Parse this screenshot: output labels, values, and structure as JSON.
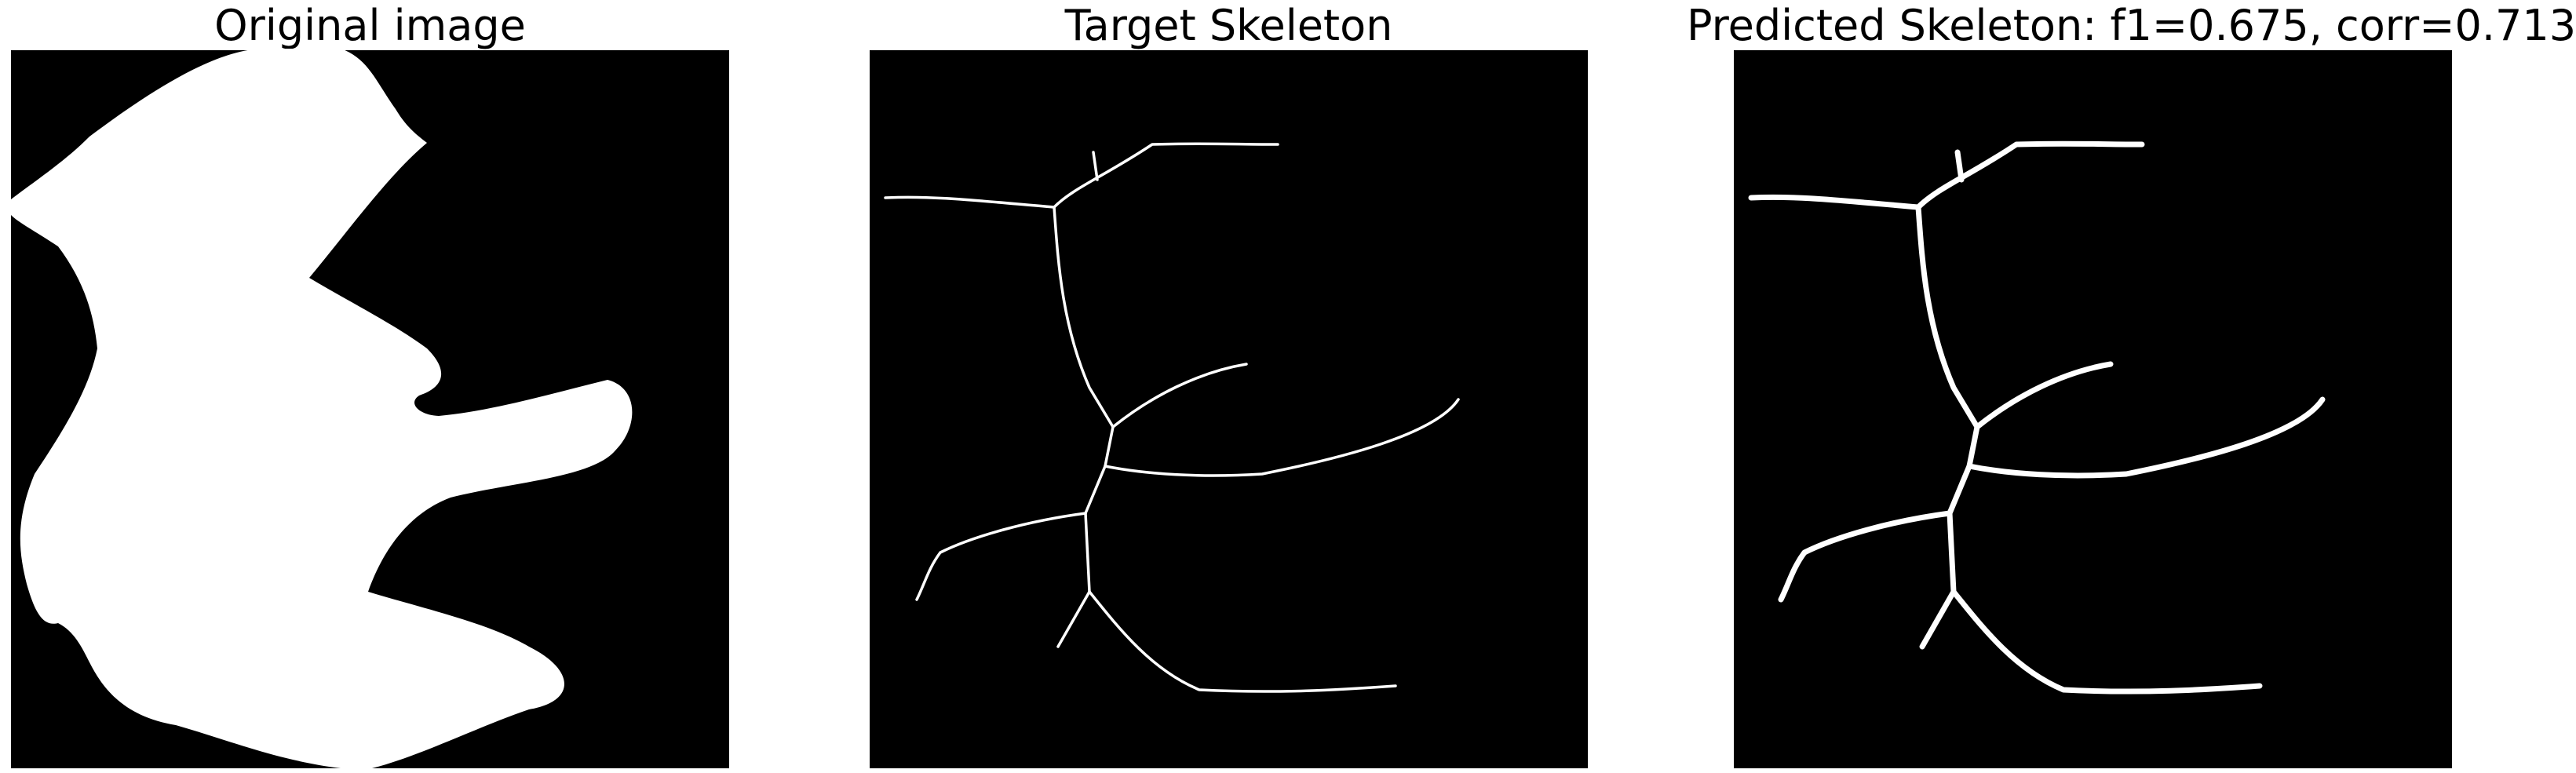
{
  "panels": [
    {
      "id": "original",
      "title": "Original image",
      "background": "#000000",
      "foreground": "#ffffff"
    },
    {
      "id": "target",
      "title": "Target Skeleton",
      "background": "#000000",
      "foreground": "#ffffff"
    },
    {
      "id": "predicted",
      "title": "Predicted Skeleton: f1=0.675, corr=0.713",
      "background": "#000000",
      "foreground": "#ffffff"
    }
  ]
}
